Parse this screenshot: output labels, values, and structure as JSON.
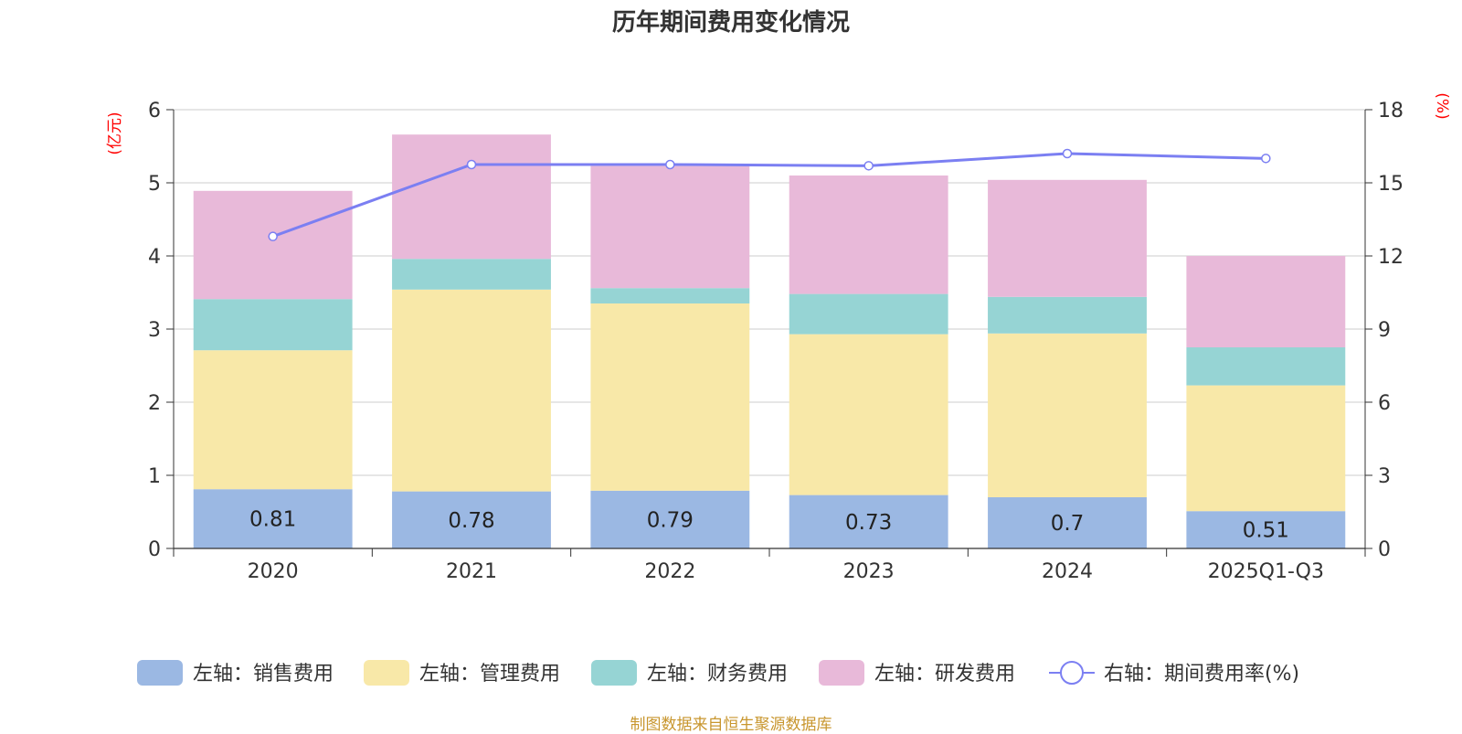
{
  "chart_data": {
    "type": "bar",
    "title": "历年期间费用变化情况",
    "categories": [
      "2020",
      "2021",
      "2022",
      "2023",
      "2024",
      "2025Q1-Q3"
    ],
    "left_axis": {
      "unit": "(亿元)",
      "ylim": [
        0,
        6
      ],
      "ticks": [
        "0",
        "1",
        "2",
        "3",
        "4",
        "5",
        "6"
      ]
    },
    "right_axis": {
      "unit": "(%)",
      "ylim": [
        0,
        18
      ],
      "ticks": [
        "0",
        "3",
        "6",
        "9",
        "12",
        "15",
        "18"
      ]
    },
    "series": [
      {
        "name": "左轴：销售费用",
        "type": "bar",
        "axis": "left",
        "color": "#9bb8e3",
        "values": [
          0.81,
          0.78,
          0.79,
          0.73,
          0.7,
          0.51
        ],
        "labels": [
          "0.81",
          "0.78",
          "0.79",
          "0.73",
          "0.7",
          "0.51"
        ]
      },
      {
        "name": "左轴：管理费用",
        "type": "bar",
        "axis": "left",
        "color": "#f8e8a8",
        "values": [
          1.9,
          2.76,
          2.56,
          2.2,
          2.24,
          1.72
        ]
      },
      {
        "name": "左轴：财务费用",
        "type": "bar",
        "axis": "left",
        "color": "#96d4d4",
        "values": [
          0.7,
          0.42,
          0.21,
          0.55,
          0.5,
          0.52
        ]
      },
      {
        "name": "左轴：研发费用",
        "type": "bar",
        "axis": "left",
        "color": "#e8b9d9",
        "values": [
          1.48,
          1.7,
          1.67,
          1.62,
          1.6,
          1.25
        ]
      },
      {
        "name": "右轴：期间费用率(%)",
        "type": "line",
        "axis": "right",
        "color": "#7b7ff2",
        "values": [
          12.8,
          15.75,
          15.75,
          15.7,
          16.2,
          16.0
        ]
      }
    ],
    "grid": true,
    "legend_position": "bottom"
  },
  "source_note": "制图数据来自恒生聚源数据库"
}
